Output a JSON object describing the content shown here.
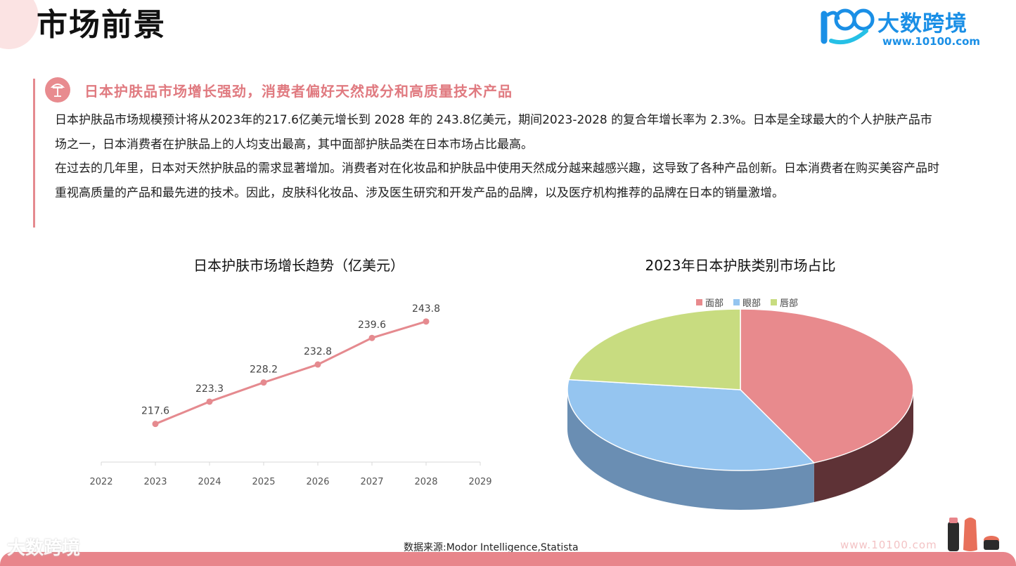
{
  "header": {
    "title": "市场前景",
    "logo_brand": "大数跨境",
    "logo_url": "www.10100.com"
  },
  "section": {
    "heading": "日本护肤品市场增长强劲，消费者偏好天然成分和高质量技术产品",
    "paragraphs": [
      "日本护肤品市场规模预计将从2023年的217.6亿美元增长到 2028 年的 243.8亿美元，期间2023-2028 的复合年增长率为 2.3%。日本是全球最大的个人护肤产品市场之一，日本消费者在护肤品上的人均支出最高，其中面部护肤品类在日本市场占比最高。",
      "在过去的几年里，日本对天然护肤品的需求显著增加。消费者对在化妆品和护肤品中使用天然成分越来越感兴趣，这导致了各种产品创新。日本消费者在购买美容产品时重视高质量的产品和最先进的技术。因此，皮肤科化妆品、涉及医生研究和开发产品的品牌，以及医疗机构推荐的品牌在日本的销量激增。"
    ]
  },
  "chart_data": [
    {
      "type": "line",
      "title": "日本护肤市场增长趋势（亿美元）",
      "x": [
        "2022",
        "2023",
        "2024",
        "2025",
        "2026",
        "2027",
        "2028",
        "2029"
      ],
      "series": [
        {
          "x": [
            "2023",
            "2024",
            "2025",
            "2026",
            "2027",
            "2028"
          ],
          "values": [
            217.6,
            223.3,
            228.2,
            232.8,
            239.6,
            243.8
          ]
        }
      ],
      "color": "#e58a8f",
      "grid": false
    },
    {
      "type": "pie",
      "title": "2023年日本护肤类别市场占比",
      "labels": [
        "面部",
        "眼部",
        "唇部"
      ],
      "values": [
        43,
        34,
        23
      ],
      "colors": [
        "#e88a8d",
        "#95c5f0",
        "#c8dc80"
      ],
      "legend": "top"
    }
  ],
  "footer": {
    "source": "数据来源:Modor Intelligence,Statista",
    "watermark": "大数跨境",
    "watermark_url": "www.10100.com"
  }
}
